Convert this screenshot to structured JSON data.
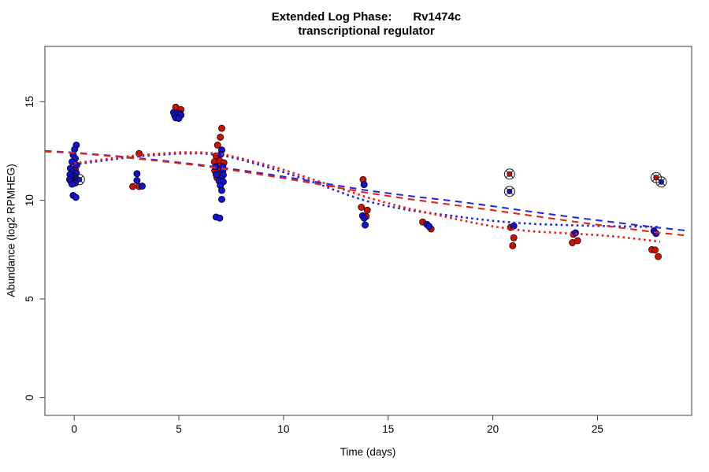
{
  "figure": {
    "title_prefix": "Extended Log Phase:",
    "title_gene": "Rv1474c",
    "subtitle": "transcriptional regulator"
  },
  "chart_data": {
    "type": "scatter",
    "title": "Extended Log Phase: Rv1474c",
    "subtitle": "transcriptional regulator",
    "xlabel": "Time (days)",
    "ylabel": "Abundance (log2 RPMHEG)",
    "xlim": [
      -1.4,
      29.5
    ],
    "ylim": [
      -0.9,
      17.8
    ],
    "xticks": [
      0,
      5,
      10,
      15,
      20,
      25
    ],
    "yticks": [
      0,
      5,
      10,
      15
    ],
    "grid": false,
    "legend": "none",
    "frame_color": "#3c3c3c",
    "text_color": "#000000",
    "circle_marker_color": "#1a1a1a",
    "series": [
      {
        "name": "red",
        "marker": "filled-circle",
        "color": "#c81405",
        "stroke": "#3a0000",
        "points": [
          [
            0.05,
            11.55
          ],
          [
            2.8,
            10.7
          ],
          [
            3.1,
            10.7
          ],
          [
            3.1,
            12.37
          ],
          [
            4.85,
            14.72
          ],
          [
            5.1,
            14.6
          ],
          [
            7.05,
            13.65
          ],
          [
            6.98,
            13.2
          ],
          [
            6.85,
            12.8
          ],
          [
            6.78,
            12.25
          ],
          [
            6.7,
            11.95
          ],
          [
            6.95,
            12.0
          ],
          [
            7.15,
            11.9
          ],
          [
            6.95,
            11.73
          ],
          [
            6.88,
            11.53
          ],
          [
            6.72,
            11.5
          ],
          [
            6.95,
            11.33
          ],
          [
            6.82,
            11.15
          ],
          [
            13.8,
            11.05
          ],
          [
            13.72,
            9.65
          ],
          [
            14.0,
            9.5
          ],
          [
            13.95,
            9.18
          ],
          [
            16.65,
            8.9
          ],
          [
            17.05,
            8.55
          ],
          [
            20.85,
            8.63
          ],
          [
            21.0,
            8.1
          ],
          [
            20.95,
            7.7
          ],
          [
            23.85,
            8.28
          ],
          [
            23.8,
            7.85
          ],
          [
            24.05,
            7.95
          ],
          [
            27.6,
            7.5
          ],
          [
            27.75,
            7.48
          ],
          [
            27.9,
            7.15
          ]
        ]
      },
      {
        "name": "blue",
        "marker": "filled-circle",
        "color": "#1414c8",
        "stroke": "#00003a",
        "points": [
          [
            0.1,
            12.8
          ],
          [
            0.02,
            12.58
          ],
          [
            -0.05,
            12.3
          ],
          [
            0.05,
            12.12
          ],
          [
            -0.1,
            11.95
          ],
          [
            0.12,
            11.78
          ],
          [
            -0.18,
            11.62
          ],
          [
            -0.08,
            11.45
          ],
          [
            0.1,
            11.38
          ],
          [
            -0.2,
            11.3
          ],
          [
            0.0,
            11.22
          ],
          [
            -0.12,
            11.15
          ],
          [
            0.08,
            11.1
          ],
          [
            -0.22,
            11.05
          ],
          [
            -0.02,
            11.0
          ],
          [
            -0.15,
            10.95
          ],
          [
            0.05,
            10.88
          ],
          [
            -0.1,
            10.82
          ],
          [
            -0.05,
            10.25
          ],
          [
            0.08,
            10.15
          ],
          [
            3.0,
            11.35
          ],
          [
            3.0,
            11.0
          ],
          [
            3.25,
            10.72
          ],
          [
            4.75,
            14.45
          ],
          [
            4.9,
            14.42
          ],
          [
            5.05,
            14.4
          ],
          [
            4.8,
            14.3
          ],
          [
            4.95,
            14.28
          ],
          [
            5.1,
            14.32
          ],
          [
            4.85,
            14.18
          ],
          [
            5.0,
            14.15
          ],
          [
            7.05,
            12.55
          ],
          [
            7.0,
            12.33
          ],
          [
            6.75,
            11.7
          ],
          [
            7.1,
            11.7
          ],
          [
            7.1,
            11.48
          ],
          [
            6.78,
            11.3
          ],
          [
            7.12,
            11.28
          ],
          [
            7.02,
            11.1
          ],
          [
            6.92,
            10.98
          ],
          [
            7.12,
            10.94
          ],
          [
            6.98,
            10.75
          ],
          [
            7.05,
            10.5
          ],
          [
            7.05,
            10.05
          ],
          [
            6.78,
            9.15
          ],
          [
            6.95,
            9.1
          ],
          [
            13.85,
            10.8
          ],
          [
            13.78,
            9.22
          ],
          [
            13.85,
            9.1
          ],
          [
            13.9,
            8.75
          ],
          [
            16.85,
            8.78
          ],
          [
            16.95,
            8.68
          ],
          [
            21.0,
            8.7
          ],
          [
            23.95,
            8.35
          ],
          [
            27.7,
            8.45
          ],
          [
            27.8,
            8.32
          ]
        ]
      }
    ],
    "circled_points": [
      {
        "x": 0.25,
        "y": 11.05,
        "series": "blue"
      },
      {
        "x": 20.8,
        "y": 11.33,
        "series": "red"
      },
      {
        "x": 20.8,
        "y": 10.45,
        "series": "blue"
      },
      {
        "x": 27.8,
        "y": 11.15,
        "series": "red"
      },
      {
        "x": 28.05,
        "y": 10.93,
        "series": "blue"
      }
    ],
    "trend_lines": [
      {
        "name": "dotted-blue",
        "color": "#2222e0",
        "dash": "2.6 4.1",
        "width": 2.6,
        "points": [
          [
            0,
            11.82
          ],
          [
            2,
            12.1
          ],
          [
            3,
            12.22
          ],
          [
            4,
            12.3
          ],
          [
            5,
            12.37
          ],
          [
            6,
            12.38
          ],
          [
            7,
            12.3
          ],
          [
            8,
            12.05
          ],
          [
            9,
            11.75
          ],
          [
            10,
            11.42
          ],
          [
            11,
            11.08
          ],
          [
            12,
            10.7
          ],
          [
            13,
            10.3
          ],
          [
            14,
            9.95
          ],
          [
            15,
            9.7
          ],
          [
            16,
            9.5
          ],
          [
            17,
            9.35
          ],
          [
            18,
            9.22
          ],
          [
            19,
            9.08
          ],
          [
            20,
            8.96
          ],
          [
            21,
            8.87
          ],
          [
            22,
            8.8
          ],
          [
            23,
            8.76
          ],
          [
            24,
            8.73
          ],
          [
            25,
            8.7
          ],
          [
            26,
            8.68
          ],
          [
            27,
            8.66
          ],
          [
            28,
            8.65
          ]
        ]
      },
      {
        "name": "dotted-red",
        "color": "#ed1c16",
        "dash": "2.6 4.1",
        "width": 2.6,
        "points": [
          [
            0,
            11.88
          ],
          [
            2,
            12.16
          ],
          [
            3,
            12.28
          ],
          [
            4,
            12.36
          ],
          [
            5,
            12.43
          ],
          [
            6,
            12.43
          ],
          [
            7,
            12.36
          ],
          [
            8,
            12.12
          ],
          [
            9,
            11.85
          ],
          [
            10,
            11.55
          ],
          [
            11,
            11.2
          ],
          [
            12,
            10.85
          ],
          [
            13,
            10.5
          ],
          [
            14,
            10.15
          ],
          [
            15,
            9.85
          ],
          [
            16,
            9.58
          ],
          [
            17,
            9.34
          ],
          [
            18,
            9.1
          ],
          [
            19,
            8.88
          ],
          [
            20,
            8.68
          ],
          [
            21,
            8.52
          ],
          [
            22,
            8.42
          ],
          [
            23,
            8.36
          ],
          [
            24,
            8.3
          ],
          [
            25,
            8.24
          ],
          [
            26,
            8.15
          ],
          [
            27,
            8.03
          ],
          [
            28,
            7.9
          ]
        ]
      },
      {
        "name": "dashed-blue",
        "color": "#2828dc",
        "dash": "8.5 6.5",
        "width": 2.1,
        "points": [
          [
            -1.4,
            12.5
          ],
          [
            0,
            12.42
          ],
          [
            2,
            12.24
          ],
          [
            4,
            12.04
          ],
          [
            6,
            11.8
          ],
          [
            8,
            11.52
          ],
          [
            10,
            11.2
          ],
          [
            12,
            10.85
          ],
          [
            14,
            10.5
          ],
          [
            16,
            10.22
          ],
          [
            18,
            9.98
          ],
          [
            20,
            9.7
          ],
          [
            22,
            9.4
          ],
          [
            24,
            9.12
          ],
          [
            26,
            8.86
          ],
          [
            28,
            8.6
          ],
          [
            29.2,
            8.47
          ]
        ]
      },
      {
        "name": "dashed-red",
        "color": "#e32219",
        "dash": "8.5 6.5",
        "width": 2.1,
        "points": [
          [
            -1.4,
            12.47
          ],
          [
            0,
            12.4
          ],
          [
            2,
            12.22
          ],
          [
            4,
            12.0
          ],
          [
            6,
            11.76
          ],
          [
            8,
            11.46
          ],
          [
            10,
            11.12
          ],
          [
            12,
            10.76
          ],
          [
            14,
            10.38
          ],
          [
            16,
            10.06
          ],
          [
            18,
            9.78
          ],
          [
            20,
            9.5
          ],
          [
            22,
            9.2
          ],
          [
            24,
            8.9
          ],
          [
            26,
            8.62
          ],
          [
            28,
            8.35
          ],
          [
            29.2,
            8.22
          ]
        ]
      }
    ]
  }
}
